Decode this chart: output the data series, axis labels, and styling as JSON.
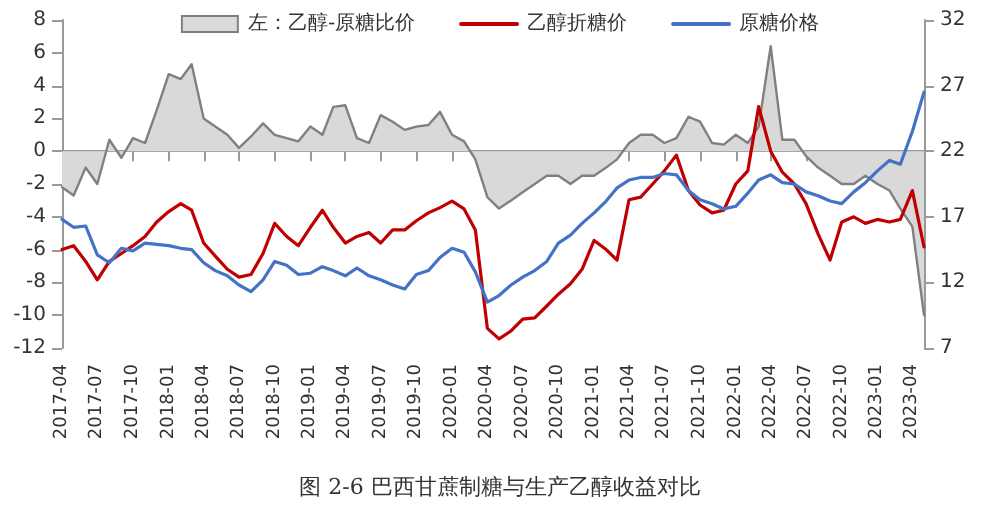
{
  "chart_data": {
    "type": "line",
    "title": "图 2-6 巴西甘蔗制糖与生产乙醇收益对比",
    "x": [
      "2017-04",
      "2017-05",
      "2017-06",
      "2017-07",
      "2017-08",
      "2017-09",
      "2017-10",
      "2017-11",
      "2017-12",
      "2018-01",
      "2018-02",
      "2018-03",
      "2018-04",
      "2018-05",
      "2018-06",
      "2018-07",
      "2018-08",
      "2018-09",
      "2018-10",
      "2018-11",
      "2018-12",
      "2019-01",
      "2019-02",
      "2019-03",
      "2019-04",
      "2019-05",
      "2019-06",
      "2019-07",
      "2019-08",
      "2019-09",
      "2019-10",
      "2019-11",
      "2019-12",
      "2020-01",
      "2020-02",
      "2020-03",
      "2020-04",
      "2020-05",
      "2020-06",
      "2020-07",
      "2020-08",
      "2020-09",
      "2020-10",
      "2020-11",
      "2020-12",
      "2021-01",
      "2021-02",
      "2021-03",
      "2021-04",
      "2021-05",
      "2021-06",
      "2021-07",
      "2021-08",
      "2021-09",
      "2021-10",
      "2021-11",
      "2021-12",
      "2022-01",
      "2022-02",
      "2022-03",
      "2022-04",
      "2022-05",
      "2022-06",
      "2022-07",
      "2022-08",
      "2022-09",
      "2022-10",
      "2022-11",
      "2022-12",
      "2023-01",
      "2023-02",
      "2023-03",
      "2023-04",
      "2023-05"
    ],
    "series": [
      {
        "name": "左：乙醇-原糖比价",
        "type": "area",
        "axis": "y",
        "color": "#808080",
        "values": [
          -2.2,
          -2.7,
          -1,
          -2,
          0.7,
          -0.4,
          0.8,
          0.5,
          2.5,
          4.7,
          4.4,
          5.3,
          2.0,
          1.5,
          1.0,
          0.2,
          0.9,
          1.7,
          1.0,
          0.8,
          0.6,
          1.5,
          1.0,
          2.7,
          2.8,
          0.8,
          0.5,
          2.2,
          1.8,
          1.3,
          1.5,
          1.6,
          2.4,
          1.0,
          0.6,
          -0.5,
          -2.8,
          -3.5,
          -3,
          -2.5,
          -2,
          -1.5,
          -1.5,
          -2,
          -1.5,
          -1.5,
          -1,
          -0.5,
          0.5,
          1.0,
          1.0,
          0.5,
          0.8,
          2.1,
          1.8,
          0.5,
          0.4,
          1.0,
          0.5,
          1.5,
          6.4,
          0.7,
          0.7,
          -0.3,
          -1,
          -1.5,
          -2,
          -2,
          -1.5,
          -2,
          -2.4,
          -3.5,
          -4.6,
          -10
        ]
      },
      {
        "name": "乙醇折糖价",
        "axis": "y2",
        "color": "#c00000",
        "values": [
          14.5,
          14.8,
          13.6,
          12.2,
          13.6,
          14.2,
          14.8,
          15.5,
          16.6,
          17.4,
          18.0,
          17.5,
          15.0,
          14.0,
          13.0,
          12.4,
          12.6,
          14.2,
          16.5,
          15.5,
          14.8,
          16.2,
          17.5,
          16.2,
          15.0,
          15.5,
          15.8,
          15.0,
          16.0,
          16.0,
          16.7,
          17.3,
          17.7,
          18.2,
          17.6,
          16.0,
          8.5,
          7.7,
          8.3,
          9.2,
          9.3,
          10.2,
          11.1,
          11.9,
          13.0,
          15.2,
          14.5,
          13.7,
          18.3,
          18.5,
          19.5,
          20.5,
          21.7,
          19.0,
          17.9,
          17.3,
          17.5,
          19.5,
          20.5,
          25.4,
          22.0,
          20.4,
          19.5,
          18.0,
          15.7,
          13.7,
          16.6,
          17.0,
          16.5,
          16.8,
          16.6,
          16.8,
          19.0,
          14.7
        ]
      },
      {
        "name": "原糖价格",
        "axis": "y2",
        "color": "#4472c4",
        "values": [
          16.8,
          16.2,
          16.3,
          14.1,
          13.5,
          14.6,
          14.4,
          15.0,
          14.9,
          14.8,
          14.6,
          14.5,
          13.5,
          12.9,
          12.5,
          11.8,
          11.3,
          12.2,
          13.6,
          13.3,
          12.6,
          12.7,
          13.2,
          12.9,
          12.5,
          13.1,
          12.5,
          12.2,
          11.8,
          11.5,
          12.6,
          12.9,
          13.9,
          14.6,
          14.3,
          12.8,
          10.5,
          11.0,
          11.8,
          12.4,
          12.9,
          13.6,
          15.0,
          15.6,
          16.5,
          17.3,
          18.2,
          19.2,
          19.8,
          20.0,
          20.0,
          20.3,
          20.2,
          19.0,
          18.3,
          18.0,
          17.6,
          17.8,
          18.8,
          19.8,
          20.2,
          19.6,
          19.5,
          18.9,
          18.6,
          18.2,
          18.0,
          18.9,
          19.6,
          20.5,
          21.3,
          21.0,
          23.5,
          26.5
        ]
      }
    ],
    "xlim": [
      "2017-04",
      "2023-05"
    ],
    "xticks": [
      "2017-04",
      "2017-07",
      "2017-10",
      "2018-01",
      "2018-04",
      "2018-07",
      "2018-10",
      "2019-01",
      "2019-04",
      "2019-07",
      "2019-10",
      "2020-01",
      "2020-04",
      "2020-07",
      "2020-10",
      "2021-01",
      "2021-04",
      "2021-07",
      "2021-10",
      "2022-01",
      "2022-04",
      "2022-07",
      "2022-10",
      "2023-01",
      "2023-04"
    ],
    "ylim": [
      -12,
      8
    ],
    "yticks": [
      -12,
      -10,
      -8,
      -6,
      -4,
      -2,
      0,
      2,
      4,
      6,
      8
    ],
    "y2lim": [
      7,
      32
    ],
    "y2ticks": [
      7,
      12,
      17,
      22,
      27,
      32
    ],
    "legend": "top",
    "line_style": "solid",
    "marker": "none"
  }
}
